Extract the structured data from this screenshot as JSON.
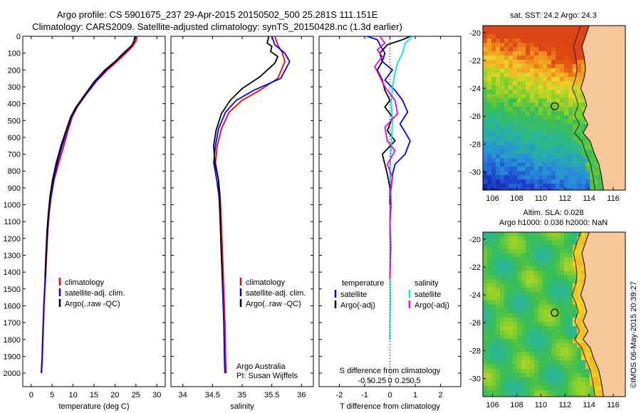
{
  "header": {
    "line1": "Argo profile: CS 5901675_237 29-Apr-2015 20150502_500 25.281S 111.151E",
    "line2": "Climatology: CARS2009. Satellite-adjusted climatology: synTS_20150428.nc (1.3d earlier)"
  },
  "colors": {
    "climatology": "#ff0000",
    "satellite": "#0000ff",
    "argo": "#000000",
    "sat_salinity": "#00e5ee",
    "argo_salinity": "#ee00ee",
    "land": "#f7c79a"
  },
  "chart_data": [
    {
      "type": "line",
      "id": "temperature",
      "xlabel": "temperature (deg C)",
      "xlim": [
        -2,
        32
      ],
      "ylim": [
        0,
        2080
      ],
      "yreversed": true,
      "xticks": [
        0,
        5,
        10,
        15,
        20,
        25,
        30
      ],
      "yticks": [
        0,
        100,
        200,
        300,
        400,
        500,
        600,
        700,
        800,
        900,
        1000,
        1100,
        1200,
        1300,
        1400,
        1500,
        1600,
        1700,
        1800,
        1900,
        2000
      ],
      "legend": [
        "climatology",
        "satellite-adj. clim.",
        "Argo(..raw -QC)"
      ],
      "series": [
        {
          "name": "climatology",
          "color": "#ff0000",
          "points": [
            [
              25.3,
              0
            ],
            [
              25.0,
              30
            ],
            [
              24.2,
              60
            ],
            [
              22.6,
              100
            ],
            [
              20.5,
              150
            ],
            [
              18.2,
              200
            ],
            [
              15.5,
              270
            ],
            [
              13.0,
              350
            ],
            [
              11.0,
              420
            ],
            [
              9.8,
              480
            ],
            [
              8.8,
              560
            ],
            [
              7.8,
              650
            ],
            [
              6.6,
              750
            ],
            [
              5.5,
              850
            ],
            [
              4.8,
              950
            ],
            [
              4.3,
              1050
            ],
            [
              4.0,
              1150
            ],
            [
              3.7,
              1300
            ],
            [
              3.4,
              1450
            ],
            [
              3.1,
              1600
            ],
            [
              2.9,
              1750
            ],
            [
              2.7,
              1900
            ],
            [
              2.5,
              2000
            ]
          ]
        },
        {
          "name": "satellite-adj. clim.",
          "color": "#0000ff",
          "points": [
            [
              24.9,
              0
            ],
            [
              24.6,
              30
            ],
            [
              23.8,
              60
            ],
            [
              22.2,
              100
            ],
            [
              20.1,
              150
            ],
            [
              17.9,
              200
            ],
            [
              15.3,
              270
            ],
            [
              12.9,
              350
            ],
            [
              10.9,
              420
            ],
            [
              9.6,
              480
            ],
            [
              8.5,
              560
            ],
            [
              7.4,
              650
            ],
            [
              6.3,
              750
            ],
            [
              5.4,
              850
            ],
            [
              4.7,
              950
            ],
            [
              4.2,
              1050
            ],
            [
              3.9,
              1150
            ],
            [
              3.6,
              1300
            ],
            [
              3.3,
              1450
            ],
            [
              3.0,
              1600
            ],
            [
              2.8,
              1750
            ],
            [
              2.6,
              1900
            ],
            [
              2.4,
              2000
            ]
          ]
        },
        {
          "name": "Argo(..raw -QC)",
          "color": "#000000",
          "points": [
            [
              24.8,
              0
            ],
            [
              24.5,
              30
            ],
            [
              24.0,
              55
            ],
            [
              22.0,
              100
            ],
            [
              20.0,
              150
            ],
            [
              17.6,
              200
            ],
            [
              15.0,
              270
            ],
            [
              12.7,
              350
            ],
            [
              10.7,
              420
            ],
            [
              9.4,
              480
            ],
            [
              8.3,
              560
            ],
            [
              7.1,
              650
            ],
            [
              6.0,
              750
            ],
            [
              5.1,
              850
            ],
            [
              4.5,
              950
            ],
            [
              4.1,
              1050
            ],
            [
              3.8,
              1150
            ],
            [
              3.5,
              1300
            ],
            [
              3.3,
              1440
            ]
          ]
        }
      ]
    },
    {
      "type": "line",
      "id": "salinity",
      "xlabel": "salinity",
      "xlim": [
        33.8,
        36.2
      ],
      "ylim": [
        0,
        2080
      ],
      "yreversed": true,
      "xticks": [
        34,
        34.5,
        35,
        35.5,
        36
      ],
      "legend": [
        "climatology",
        "satellite-adj. clim.",
        "Argo(..raw -QC)"
      ],
      "annotation": [
        "Argo Australia",
        "PI: Susan Wijffels"
      ],
      "series": [
        {
          "name": "climatology",
          "color": "#ff0000",
          "points": [
            [
              35.55,
              0
            ],
            [
              35.6,
              50
            ],
            [
              35.68,
              100
            ],
            [
              35.72,
              150
            ],
            [
              35.6,
              250
            ],
            [
              35.3,
              320
            ],
            [
              35.0,
              380
            ],
            [
              34.78,
              450
            ],
            [
              34.65,
              550
            ],
            [
              34.58,
              650
            ],
            [
              34.55,
              750
            ],
            [
              34.6,
              850
            ],
            [
              34.63,
              950
            ],
            [
              34.65,
              1100
            ],
            [
              34.67,
              1300
            ],
            [
              34.69,
              1500
            ],
            [
              34.71,
              1700
            ],
            [
              34.72,
              1900
            ],
            [
              34.73,
              2000
            ]
          ]
        },
        {
          "name": "satellite-adj. clim.",
          "color": "#0000ff",
          "points": [
            [
              35.5,
              0
            ],
            [
              35.55,
              50
            ],
            [
              35.72,
              100
            ],
            [
              35.8,
              150
            ],
            [
              35.65,
              250
            ],
            [
              35.2,
              320
            ],
            [
              34.9,
              380
            ],
            [
              34.72,
              450
            ],
            [
              34.6,
              550
            ],
            [
              34.55,
              650
            ],
            [
              34.52,
              750
            ],
            [
              34.57,
              850
            ],
            [
              34.61,
              950
            ],
            [
              34.63,
              1100
            ],
            [
              34.65,
              1300
            ],
            [
              34.67,
              1500
            ],
            [
              34.69,
              1700
            ],
            [
              34.7,
              1900
            ],
            [
              34.71,
              2000
            ]
          ]
        },
        {
          "name": "Argo(..raw -QC)",
          "color": "#000000",
          "points": [
            [
              35.45,
              0
            ],
            [
              35.42,
              40
            ],
            [
              35.5,
              60
            ],
            [
              35.48,
              90
            ],
            [
              35.6,
              120
            ],
            [
              35.55,
              160
            ],
            [
              35.3,
              240
            ],
            [
              35.0,
              310
            ],
            [
              34.8,
              380
            ],
            [
              34.65,
              460
            ],
            [
              34.56,
              560
            ],
            [
              34.52,
              650
            ],
            [
              34.54,
              750
            ],
            [
              34.6,
              850
            ],
            [
              34.62,
              950
            ],
            [
              34.63,
              1100
            ],
            [
              34.65,
              1300
            ],
            [
              34.67,
              1440
            ]
          ]
        }
      ]
    },
    {
      "type": "line",
      "id": "difference",
      "xlabel": "T difference from climatology",
      "xlabel_top": "S difference from climatology",
      "xlim": [
        -2.8,
        2.8
      ],
      "ylim": [
        0,
        2080
      ],
      "yreversed": true,
      "xticks": [
        -2,
        -1,
        0,
        1,
        2
      ],
      "xticks_s": [
        -0.5,
        -0.25,
        0,
        0.25,
        0.5
      ],
      "xticks_s_labels": [
        "-0.5",
        "-0.25",
        "0",
        "0.25",
        "0.5"
      ],
      "legend": {
        "temperature_title": "temperature",
        "salinity_title": "salinity",
        "temperature_items": [
          "satellite",
          "Argo(-adj)"
        ],
        "salinity_items": [
          "satellite",
          "Argo(-adj)"
        ]
      },
      "series": [
        {
          "name": "temperature satellite",
          "color": "#0000ff",
          "points": [
            [
              -0.9,
              0
            ],
            [
              -0.5,
              20
            ],
            [
              -0.4,
              50
            ],
            [
              -0.2,
              100
            ],
            [
              -0.3,
              150
            ],
            [
              0.1,
              200
            ],
            [
              -0.2,
              260
            ],
            [
              0.2,
              320
            ],
            [
              0.5,
              380
            ],
            [
              0.7,
              450
            ],
            [
              0.4,
              520
            ],
            [
              0.8,
              620
            ],
            [
              0.6,
              700
            ],
            [
              0.2,
              760
            ],
            [
              0.1,
              820
            ],
            [
              0.05,
              900
            ],
            [
              0.02,
              1000
            ],
            [
              0.0,
              1100
            ]
          ]
        },
        {
          "name": "temperature Argo(-adj)",
          "color": "#000000",
          "points": [
            [
              0.8,
              0
            ],
            [
              0.5,
              20
            ],
            [
              -0.1,
              50
            ],
            [
              -0.4,
              100
            ],
            [
              -0.3,
              150
            ],
            [
              -0.5,
              200
            ],
            [
              -0.3,
              260
            ],
            [
              -0.2,
              320
            ],
            [
              0.0,
              380
            ],
            [
              -0.2,
              420
            ],
            [
              0.1,
              480
            ],
            [
              -0.1,
              560
            ],
            [
              0.2,
              620
            ],
            [
              -0.3,
              700
            ],
            [
              -0.2,
              760
            ],
            [
              -0.1,
              820
            ],
            [
              0.0,
              900
            ],
            [
              0.0,
              1000
            ]
          ]
        },
        {
          "name": "salinity satellite",
          "color": "#00e5ee",
          "points": [
            [
              0.9,
              0
            ],
            [
              0.6,
              40
            ],
            [
              0.5,
              100
            ],
            [
              0.3,
              160
            ],
            [
              0.2,
              220
            ],
            [
              0.1,
              300
            ],
            [
              0.05,
              400
            ],
            [
              0.1,
              500
            ],
            [
              0.05,
              650
            ],
            [
              0.0,
              800
            ],
            [
              0.05,
              950
            ],
            [
              0.0,
              1100
            ],
            [
              0.05,
              1250
            ],
            [
              0.0,
              1400
            ],
            [
              0.02,
              1550
            ],
            [
              0.0,
              1700
            ],
            [
              0.0,
              1800
            ]
          ]
        },
        {
          "name": "salinity Argo(-adj)",
          "color": "#ee00ee",
          "points": [
            [
              -0.4,
              0
            ],
            [
              -0.2,
              40
            ],
            [
              -0.5,
              80
            ],
            [
              -0.3,
              120
            ],
            [
              -0.6,
              180
            ],
            [
              -0.4,
              240
            ],
            [
              -0.2,
              300
            ],
            [
              0.2,
              380
            ],
            [
              0.3,
              460
            ],
            [
              -0.2,
              540
            ],
            [
              -0.1,
              620
            ],
            [
              0.2,
              680
            ],
            [
              -0.1,
              760
            ],
            [
              0.1,
              840
            ],
            [
              0.0,
              920
            ],
            [
              0.05,
              1000
            ],
            [
              0.0,
              1100
            ],
            [
              0.02,
              1250
            ],
            [
              0.0,
              1440
            ]
          ]
        }
      ]
    },
    {
      "type": "heatmap",
      "id": "sst-map",
      "title": "sat. SST: 24.2 Argo: 24.3",
      "xlim": [
        105.2,
        117
      ],
      "ylim": [
        -31.3,
        -19.5
      ],
      "xticks": [
        106,
        108,
        110,
        112,
        114,
        116
      ],
      "yticks": [
        -20,
        -22,
        -24,
        -26,
        -28,
        -30
      ],
      "marker": [
        111.151,
        -25.281
      ]
    },
    {
      "type": "heatmap",
      "id": "sla-map",
      "title_line1": "Altim. SLA: 0.028",
      "title_line2": "Argo h1000: 0.036 h2000: NaN",
      "xlim": [
        105.2,
        117
      ],
      "ylim": [
        -31.3,
        -19.5
      ],
      "xticks": [
        106,
        108,
        110,
        112,
        114,
        116
      ],
      "yticks": [
        -20,
        -22,
        -24,
        -26,
        -28,
        -30
      ],
      "marker": [
        111.151,
        -25.281
      ]
    }
  ],
  "footer": {
    "stamp": "©IMOS 06-May-2015 20:39:27"
  }
}
